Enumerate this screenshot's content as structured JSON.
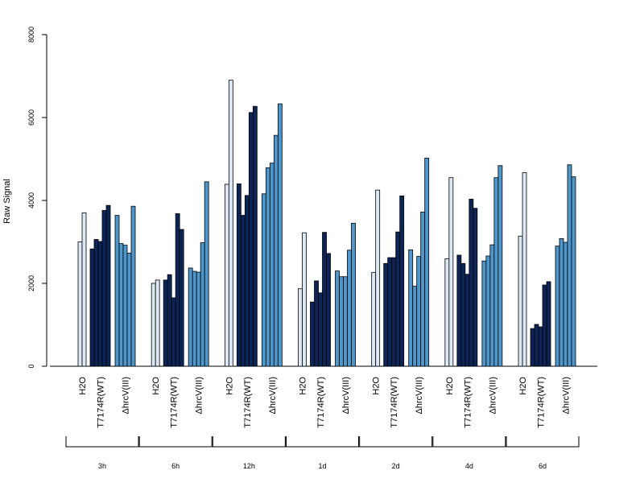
{
  "chart_data": {
    "type": "bar",
    "ylabel": "Raw Signal",
    "ylim": [
      0,
      8000
    ],
    "yticks": [
      "0",
      "2000",
      "4000",
      "6000",
      "8000"
    ],
    "bar_labels": [
      "H2O",
      "T7174R(WT)",
      "ΔhrcV(III)"
    ],
    "colors": {
      "H2O": "#dce8f5",
      "T7174R(WT)": "#0c2456",
      "ΔhrcV(III)": "#4f97cb"
    },
    "groups": [
      {
        "name": "3h",
        "H2O": [
          3000,
          3700
        ],
        "T7174R(WT)": [
          2830,
          3060,
          3010,
          3760,
          3880
        ],
        "ΔhrcV(III)": [
          3640,
          2960,
          2920,
          2730,
          3860
        ]
      },
      {
        "name": "6h",
        "H2O": [
          2000,
          2080
        ],
        "T7174R(WT)": [
          2080,
          2210,
          1650,
          3680,
          3300
        ],
        "ΔhrcV(III)": [
          2370,
          2290,
          2270,
          2980,
          4450
        ]
      },
      {
        "name": "12h",
        "H2O": [
          4390,
          6900
        ],
        "T7174R(WT)": [
          4400,
          3640,
          4120,
          6120,
          6270
        ],
        "ΔhrcV(III)": [
          4160,
          4790,
          4900,
          5570,
          6330
        ]
      },
      {
        "name": "1d",
        "H2O": [
          1870,
          3220
        ],
        "T7174R(WT)": [
          1550,
          2060,
          1770,
          3230,
          2720
        ],
        "ΔhrcV(III)": [
          2300,
          2160,
          2160,
          2800,
          3450
        ]
      },
      {
        "name": "2d",
        "H2O": [
          2260,
          4250
        ],
        "T7174R(WT)": [
          2480,
          2620,
          2620,
          3240,
          4110
        ],
        "ΔhrcV(III)": [
          2810,
          1930,
          2650,
          3720,
          5020
        ]
      },
      {
        "name": "4d",
        "H2O": [
          2590,
          4550
        ],
        "T7174R(WT)": [
          2680,
          2480,
          2220,
          4030,
          3810
        ],
        "ΔhrcV(III)": [
          2540,
          2660,
          2930,
          4550,
          4840
        ]
      },
      {
        "name": "6d",
        "H2O": [
          3140,
          4670
        ],
        "T7174R(WT)": [
          910,
          1010,
          950,
          1960,
          2040
        ],
        "ΔhrcV(III)": [
          2900,
          3080,
          2990,
          4860,
          4570
        ]
      }
    ]
  }
}
